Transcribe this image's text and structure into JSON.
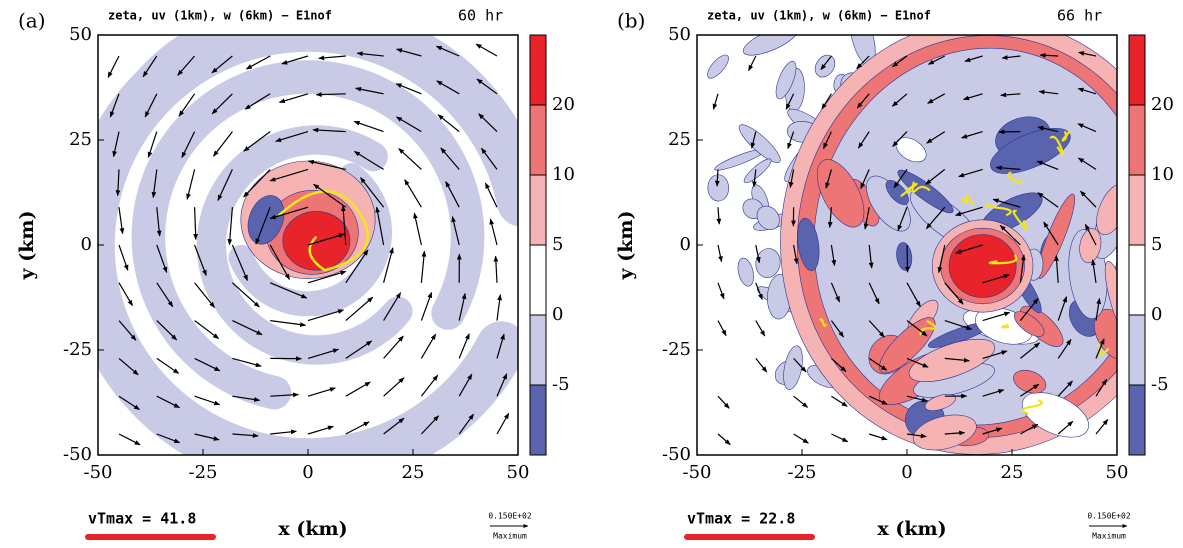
{
  "chart_data": [
    {
      "type": "contour",
      "panel_label": "(a)",
      "title": "zeta, uv (1km), w (6km) − E1nof",
      "time_label": "60 hr",
      "x_label": "x (km)",
      "y_label": "y (km)",
      "xlim": [
        -50,
        50
      ],
      "xticks": [
        -50,
        -25,
        0,
        25,
        50
      ],
      "ylim": [
        -50,
        50
      ],
      "yticks": [
        -50,
        -25,
        0,
        25,
        50
      ],
      "colorbar": {
        "ticks": [
          -5,
          0,
          5,
          10,
          20
        ],
        "colors": [
          "#5a63ad",
          "#c8cae6",
          "#ffffff",
          "#f5b3b3",
          "#ee7575",
          "#e8232a"
        ]
      },
      "annotation": "vTmax = 41.8",
      "vector_key": "0.150E+02",
      "vector_key_label": "Maximum"
    },
    {
      "type": "contour",
      "panel_label": "(b)",
      "title": "zeta, uv (1km), w (6km) − E1nof",
      "time_label": "66 hr",
      "x_label": "x (km)",
      "y_label": "y (km)",
      "xlim": [
        -50,
        50
      ],
      "xticks": [
        -50,
        -25,
        0,
        25,
        50
      ],
      "ylim": [
        -50,
        50
      ],
      "yticks": [
        -50,
        -25,
        0,
        25,
        50
      ],
      "colorbar": {
        "ticks": [
          -5,
          0,
          5,
          10,
          20
        ],
        "colors": [
          "#5a63ad",
          "#c8cae6",
          "#ffffff",
          "#f5b3b3",
          "#ee7575",
          "#e8232a"
        ]
      },
      "annotation": "vTmax = 22.8",
      "vector_key": "0.150E+02",
      "vector_key_label": "Maximum"
    }
  ]
}
